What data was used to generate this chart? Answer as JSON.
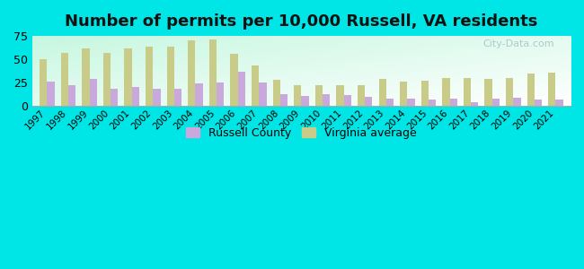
{
  "years": [
    1997,
    1998,
    1999,
    2000,
    2001,
    2002,
    2003,
    2004,
    2005,
    2006,
    2007,
    2008,
    2009,
    2010,
    2011,
    2012,
    2013,
    2014,
    2015,
    2016,
    2017,
    2018,
    2019,
    2020,
    2021
  ],
  "russell": [
    26,
    22,
    29,
    18,
    20,
    18,
    18,
    24,
    25,
    37,
    25,
    13,
    11,
    13,
    12,
    10,
    8,
    8,
    7,
    8,
    4,
    8,
    9,
    7,
    7
  ],
  "virginia": [
    50,
    57,
    62,
    57,
    62,
    64,
    64,
    70,
    71,
    56,
    43,
    28,
    22,
    22,
    22,
    22,
    29,
    26,
    27,
    30,
    30,
    29,
    30,
    35,
    36
  ],
  "title": "Number of permits per 10,000 Russell, VA residents",
  "russell_color": "#c9a8dc",
  "virginia_color": "#c8cc88",
  "ylim": [
    0,
    75
  ],
  "yticks": [
    0,
    25,
    50,
    75
  ],
  "bg_outer": "#00e5e5",
  "legend_russell": "Russell County",
  "legend_virginia": "Virginia average",
  "title_fontsize": 13,
  "watermark": "City-Data.com"
}
